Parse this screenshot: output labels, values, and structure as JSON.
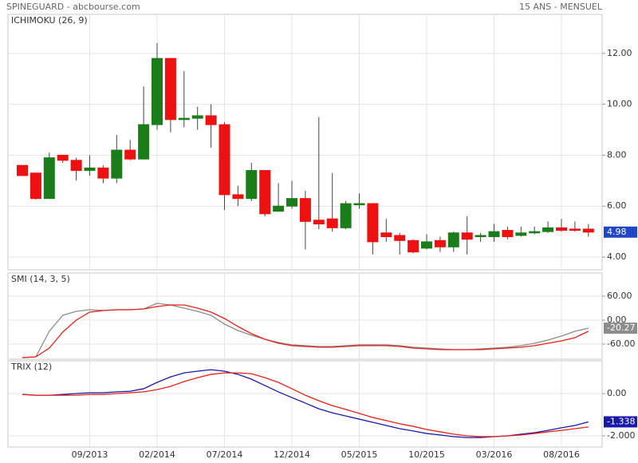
{
  "header": {
    "title": "SPINEGUARD - abcbourse.com",
    "subtitle": "15 ANS - MENSUEL"
  },
  "chart_data": [
    {
      "type": "candlestick",
      "title": "ICHIMOKU (26, 9)",
      "categories": [
        null,
        null,
        null,
        null,
        null,
        "09/2013",
        null,
        null,
        null,
        null,
        "02/2014",
        null,
        null,
        null,
        null,
        "07/2014",
        null,
        null,
        null,
        null,
        "12/2014",
        null,
        null,
        null,
        null,
        "05/2015",
        null,
        null,
        null,
        null,
        "10/2015",
        null,
        null,
        null,
        null,
        "03/2016",
        null,
        null,
        null,
        null,
        "08/2016",
        null,
        null
      ],
      "open": [
        7.6,
        7.3,
        6.3,
        8.0,
        7.8,
        7.4,
        7.5,
        7.1,
        8.2,
        7.85,
        9.2,
        11.8,
        9.4,
        9.45,
        9.55,
        9.2,
        6.45,
        6.3,
        7.4,
        5.8,
        6.0,
        6.3,
        5.45,
        5.5,
        5.15,
        6.1,
        6.1,
        4.95,
        4.85,
        4.65,
        4.35,
        4.65,
        4.4,
        4.95,
        4.8,
        4.8,
        5.05,
        4.85,
        4.95,
        5.0,
        5.15,
        5.1,
        5.1
      ],
      "high": [
        7.6,
        7.3,
        8.1,
        8.0,
        7.9,
        8.0,
        7.6,
        8.8,
        8.6,
        10.7,
        12.4,
        11.8,
        11.3,
        9.9,
        10.0,
        9.3,
        6.8,
        7.7,
        7.4,
        6.9,
        7.0,
        6.6,
        9.5,
        7.3,
        6.2,
        6.5,
        6.1,
        5.5,
        4.95,
        4.7,
        4.9,
        4.8,
        5.0,
        5.6,
        4.95,
        5.3,
        5.2,
        5.2,
        5.2,
        5.4,
        5.5,
        5.4,
        5.3
      ],
      "low": [
        7.2,
        6.25,
        6.3,
        7.7,
        7.0,
        7.2,
        6.9,
        6.9,
        7.8,
        7.85,
        9.0,
        8.9,
        9.1,
        9.0,
        8.3,
        5.85,
        6.0,
        6.2,
        5.6,
        5.8,
        5.9,
        4.3,
        5.1,
        5.0,
        5.1,
        5.9,
        4.1,
        4.6,
        4.1,
        4.15,
        4.3,
        4.2,
        4.2,
        4.1,
        4.6,
        4.6,
        4.7,
        4.8,
        4.9,
        4.95,
        5.0,
        5.0,
        4.8
      ],
      "close": [
        7.2,
        6.3,
        7.9,
        7.8,
        7.4,
        7.5,
        7.1,
        8.2,
        7.85,
        9.2,
        11.8,
        9.4,
        9.45,
        9.55,
        9.2,
        6.45,
        6.3,
        7.4,
        5.7,
        6.0,
        6.3,
        5.4,
        5.3,
        5.15,
        6.1,
        6.1,
        4.6,
        4.8,
        4.65,
        4.2,
        4.6,
        4.4,
        4.95,
        4.7,
        4.85,
        5.0,
        4.8,
        4.95,
        5.0,
        5.15,
        5.05,
        5.05,
        4.98
      ],
      "up_color": "#1a7d1a",
      "down_color": "#ee1111",
      "label_color": "#2146c7",
      "ylim": [
        3.5,
        13.53
      ],
      "yticks": [
        {
          "value": 4,
          "label": "4.00"
        },
        {
          "value": 6,
          "label": "6.00"
        },
        {
          "value": 8,
          "label": "8.00"
        },
        {
          "value": 10,
          "label": "10.00"
        },
        {
          "value": 12,
          "label": "12.00"
        }
      ],
      "grid": true
    },
    {
      "type": "line",
      "title": "SMI (14, 3, 5)",
      "series": [
        {
          "name": null,
          "color": "#8c8c8c",
          "last_label": true,
          "values": [
            -94,
            -92,
            -28,
            12,
            22,
            26,
            24,
            26,
            26,
            28,
            42,
            38,
            30,
            22,
            12,
            -10,
            -26,
            -38,
            -48,
            -56,
            -62,
            -64,
            -66,
            -66,
            -64,
            -62,
            -62,
            -62,
            -64,
            -68,
            -70,
            -72,
            -74,
            -74,
            -72,
            -70,
            -68,
            -64,
            -58,
            -50,
            -40,
            -28,
            -20.27
          ]
        },
        {
          "name": null,
          "color": "#e8201a",
          "last_label": false,
          "values": [
            -94,
            -92,
            -70,
            -30,
            0,
            20,
            24,
            26,
            26,
            28,
            34,
            38,
            38,
            30,
            20,
            4,
            -16,
            -34,
            -48,
            -58,
            -64,
            -66,
            -68,
            -68,
            -66,
            -64,
            -64,
            -64,
            -66,
            -70,
            -72,
            -74,
            -74,
            -74,
            -74,
            -72,
            -70,
            -68,
            -64,
            -58,
            -52,
            -44,
            -28
          ]
        }
      ],
      "ylim": [
        -98,
        118
      ],
      "yticks": [
        {
          "value": -60,
          "label": "-60.00"
        },
        {
          "value": 0,
          "label": "0.00"
        },
        {
          "value": 60,
          "label": "60.00"
        }
      ],
      "grid": true
    },
    {
      "type": "line",
      "title": "TRIX (12)",
      "series": [
        {
          "name": null,
          "color": "#1a1aa8",
          "last_label": true,
          "values": [
            -0.04,
            -0.08,
            -0.08,
            -0.04,
            0,
            0.04,
            0.04,
            0.08,
            0.11,
            0.23,
            0.53,
            0.79,
            0.98,
            1.06,
            1.13,
            1.06,
            0.91,
            0.68,
            0.38,
            0.08,
            -0.19,
            -0.45,
            -0.72,
            -0.91,
            -1.06,
            -1.21,
            -1.36,
            -1.51,
            -1.66,
            -1.77,
            -1.89,
            -1.96,
            -2.04,
            -2.08,
            -2.08,
            -2.04,
            -2.0,
            -1.92,
            -1.85,
            -1.74,
            -1.62,
            -1.51,
            -1.338
          ]
        },
        {
          "name": null,
          "color": "#e8201a",
          "last_label": false,
          "values": [
            -0.04,
            -0.08,
            -0.08,
            -0.08,
            -0.08,
            -0.04,
            -0.04,
            0,
            0.04,
            0.08,
            0.19,
            0.34,
            0.57,
            0.75,
            0.91,
            0.98,
            0.98,
            0.94,
            0.75,
            0.53,
            0.23,
            -0.08,
            -0.34,
            -0.57,
            -0.75,
            -0.94,
            -1.13,
            -1.28,
            -1.43,
            -1.55,
            -1.7,
            -1.81,
            -1.92,
            -2.0,
            -2.04,
            -2.04,
            -2.0,
            -1.96,
            -1.89,
            -1.81,
            -1.74,
            -1.66,
            -1.58
          ]
        }
      ],
      "ylim": [
        -2.53,
        1.55
      ],
      "yticks": [
        {
          "value": -2,
          "label": "-2.000"
        },
        {
          "value": 0,
          "label": "0.00"
        }
      ],
      "grid": true
    }
  ]
}
